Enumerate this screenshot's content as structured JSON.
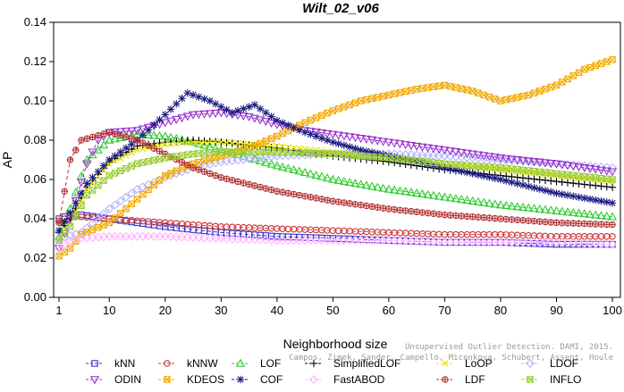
{
  "chart_data": {
    "type": "line",
    "title": "Wilt_02_v06",
    "xlabel": "Neighborhood size",
    "ylabel": "AP",
    "xlim": [
      1,
      100
    ],
    "ylim": [
      0.0,
      0.14
    ],
    "xticks": [
      1,
      10,
      20,
      30,
      40,
      50,
      60,
      70,
      80,
      90,
      100
    ],
    "yticks": [
      0.0,
      0.02,
      0.04,
      0.06,
      0.08,
      0.1,
      0.12,
      0.14
    ],
    "ytick_labels": [
      "0.00",
      "0.02",
      "0.04",
      "0.06",
      "0.08",
      "0.10",
      "0.12",
      "0.14"
    ],
    "grid": false,
    "legend_position": "bottom",
    "series": [
      {
        "name": "kNN",
        "color": "#3333cc",
        "marker": "square",
        "points": [
          [
            1,
            0.04
          ],
          [
            3,
            0.042
          ],
          [
            5,
            0.042
          ],
          [
            10,
            0.04
          ],
          [
            20,
            0.036
          ],
          [
            30,
            0.033
          ],
          [
            40,
            0.031
          ],
          [
            50,
            0.03
          ],
          [
            60,
            0.029
          ],
          [
            70,
            0.028
          ],
          [
            80,
            0.028
          ],
          [
            90,
            0.027
          ],
          [
            100,
            0.027
          ]
        ]
      },
      {
        "name": "kNNW",
        "color": "#cc3333",
        "marker": "circle",
        "points": [
          [
            1,
            0.039
          ],
          [
            3,
            0.041
          ],
          [
            5,
            0.041
          ],
          [
            10,
            0.04
          ],
          [
            20,
            0.038
          ],
          [
            30,
            0.036
          ],
          [
            40,
            0.035
          ],
          [
            50,
            0.034
          ],
          [
            60,
            0.033
          ],
          [
            70,
            0.032
          ],
          [
            80,
            0.032
          ],
          [
            90,
            0.031
          ],
          [
            100,
            0.031
          ]
        ]
      },
      {
        "name": "LOF",
        "color": "#33cc33",
        "marker": "triangle",
        "points": [
          [
            1,
            0.031
          ],
          [
            3,
            0.045
          ],
          [
            6,
            0.07
          ],
          [
            10,
            0.08
          ],
          [
            15,
            0.083
          ],
          [
            20,
            0.082
          ],
          [
            25,
            0.079
          ],
          [
            30,
            0.075
          ],
          [
            40,
            0.067
          ],
          [
            50,
            0.06
          ],
          [
            60,
            0.055
          ],
          [
            70,
            0.051
          ],
          [
            80,
            0.047
          ],
          [
            90,
            0.044
          ],
          [
            100,
            0.041
          ]
        ]
      },
      {
        "name": "SimplifiedLOF",
        "color": "#000000",
        "marker": "plus",
        "points": [
          [
            1,
            0.033
          ],
          [
            3,
            0.04
          ],
          [
            6,
            0.056
          ],
          [
            10,
            0.069
          ],
          [
            15,
            0.077
          ],
          [
            20,
            0.079
          ],
          [
            25,
            0.08
          ],
          [
            30,
            0.079
          ],
          [
            40,
            0.076
          ],
          [
            50,
            0.072
          ],
          [
            60,
            0.069
          ],
          [
            70,
            0.065
          ],
          [
            80,
            0.062
          ],
          [
            90,
            0.059
          ],
          [
            100,
            0.056
          ]
        ]
      },
      {
        "name": "LoOP",
        "color": "#e6e600",
        "marker": "x",
        "points": [
          [
            1,
            0.032
          ],
          [
            3,
            0.038
          ],
          [
            6,
            0.055
          ],
          [
            10,
            0.068
          ],
          [
            15,
            0.075
          ],
          [
            20,
            0.078
          ],
          [
            25,
            0.079
          ],
          [
            30,
            0.079
          ],
          [
            40,
            0.077
          ],
          [
            50,
            0.074
          ],
          [
            60,
            0.071
          ],
          [
            70,
            0.068
          ],
          [
            80,
            0.065
          ],
          [
            90,
            0.062
          ],
          [
            100,
            0.059
          ]
        ]
      },
      {
        "name": "LDOF",
        "color": "#b3b3ff",
        "marker": "diamond",
        "points": [
          [
            1,
            0.03
          ],
          [
            5,
            0.033
          ],
          [
            10,
            0.045
          ],
          [
            15,
            0.055
          ],
          [
            20,
            0.061
          ],
          [
            25,
            0.066
          ],
          [
            30,
            0.069
          ],
          [
            40,
            0.072
          ],
          [
            50,
            0.073
          ],
          [
            60,
            0.073
          ],
          [
            70,
            0.072
          ],
          [
            80,
            0.07
          ],
          [
            90,
            0.068
          ],
          [
            100,
            0.066
          ]
        ]
      },
      {
        "name": "ODIN",
        "color": "#9933cc",
        "marker": "triangle-down",
        "points": [
          [
            1,
            0.025
          ],
          [
            3,
            0.04
          ],
          [
            6,
            0.068
          ],
          [
            8,
            0.08
          ],
          [
            10,
            0.084
          ],
          [
            15,
            0.085
          ],
          [
            20,
            0.089
          ],
          [
            25,
            0.093
          ],
          [
            30,
            0.094
          ],
          [
            35,
            0.092
          ],
          [
            40,
            0.088
          ],
          [
            45,
            0.085
          ],
          [
            50,
            0.083
          ],
          [
            60,
            0.079
          ],
          [
            70,
            0.075
          ],
          [
            80,
            0.071
          ],
          [
            90,
            0.068
          ],
          [
            100,
            0.064
          ]
        ]
      },
      {
        "name": "KDEOS",
        "color": "#f2a900",
        "marker": "square-x",
        "points": [
          [
            1,
            0.021
          ],
          [
            3,
            0.025
          ],
          [
            5,
            0.032
          ],
          [
            10,
            0.038
          ],
          [
            15,
            0.05
          ],
          [
            20,
            0.062
          ],
          [
            25,
            0.068
          ],
          [
            30,
            0.072
          ],
          [
            35,
            0.076
          ],
          [
            40,
            0.082
          ],
          [
            45,
            0.089
          ],
          [
            50,
            0.095
          ],
          [
            55,
            0.1
          ],
          [
            60,
            0.103
          ],
          [
            65,
            0.106
          ],
          [
            70,
            0.108
          ],
          [
            75,
            0.105
          ],
          [
            80,
            0.1
          ],
          [
            85,
            0.103
          ],
          [
            90,
            0.108
          ],
          [
            95,
            0.116
          ],
          [
            100,
            0.121
          ]
        ]
      },
      {
        "name": "COF",
        "color": "#1a1a80",
        "marker": "star",
        "points": [
          [
            1,
            0.034
          ],
          [
            3,
            0.043
          ],
          [
            6,
            0.058
          ],
          [
            10,
            0.07
          ],
          [
            15,
            0.08
          ],
          [
            20,
            0.093
          ],
          [
            24,
            0.104
          ],
          [
            28,
            0.1
          ],
          [
            32,
            0.094
          ],
          [
            36,
            0.098
          ],
          [
            40,
            0.09
          ],
          [
            45,
            0.084
          ],
          [
            50,
            0.079
          ],
          [
            55,
            0.075
          ],
          [
            60,
            0.072
          ],
          [
            70,
            0.066
          ],
          [
            80,
            0.06
          ],
          [
            90,
            0.053
          ],
          [
            100,
            0.048
          ]
        ]
      },
      {
        "name": "FastABOD",
        "color": "#ffb3ff",
        "marker": "diamond",
        "points": [
          [
            1,
            0.025
          ],
          [
            3,
            0.029
          ],
          [
            5,
            0.03
          ],
          [
            10,
            0.031
          ],
          [
            20,
            0.031
          ],
          [
            30,
            0.03
          ],
          [
            40,
            0.029
          ],
          [
            50,
            0.029
          ],
          [
            60,
            0.029
          ],
          [
            70,
            0.028
          ],
          [
            80,
            0.028
          ],
          [
            90,
            0.028
          ],
          [
            100,
            0.027
          ]
        ]
      },
      {
        "name": "LDF",
        "color": "#b33333",
        "marker": "circle-plus",
        "points": [
          [
            1,
            0.038
          ],
          [
            3,
            0.07
          ],
          [
            5,
            0.08
          ],
          [
            10,
            0.084
          ],
          [
            15,
            0.08
          ],
          [
            20,
            0.073
          ],
          [
            25,
            0.066
          ],
          [
            30,
            0.061
          ],
          [
            40,
            0.054
          ],
          [
            50,
            0.049
          ],
          [
            60,
            0.045
          ],
          [
            70,
            0.042
          ],
          [
            80,
            0.04
          ],
          [
            90,
            0.038
          ],
          [
            100,
            0.037
          ]
        ]
      },
      {
        "name": "INFLO",
        "color": "#99cc33",
        "marker": "square-x",
        "points": [
          [
            1,
            0.029
          ],
          [
            3,
            0.036
          ],
          [
            6,
            0.052
          ],
          [
            10,
            0.062
          ],
          [
            15,
            0.068
          ],
          [
            20,
            0.071
          ],
          [
            25,
            0.073
          ],
          [
            30,
            0.074
          ],
          [
            40,
            0.074
          ],
          [
            50,
            0.073
          ],
          [
            60,
            0.071
          ],
          [
            70,
            0.068
          ],
          [
            80,
            0.066
          ],
          [
            90,
            0.063
          ],
          [
            100,
            0.06
          ]
        ]
      }
    ]
  },
  "legend_rows": [
    [
      "kNN",
      "kNNW",
      "LOF",
      "SimplifiedLOF",
      "LoOP",
      "LDOF"
    ],
    [
      "ODIN",
      "KDEOS",
      "COF",
      "FastABOD",
      "LDF",
      "INFLO"
    ]
  ],
  "watermark": {
    "line1": "Unsupervised Outlier Detection. DAMI, 2015.",
    "line2": "Campos, Zimek, Sander, Campello, Micenkova, Schubert, Assent, Houle"
  }
}
